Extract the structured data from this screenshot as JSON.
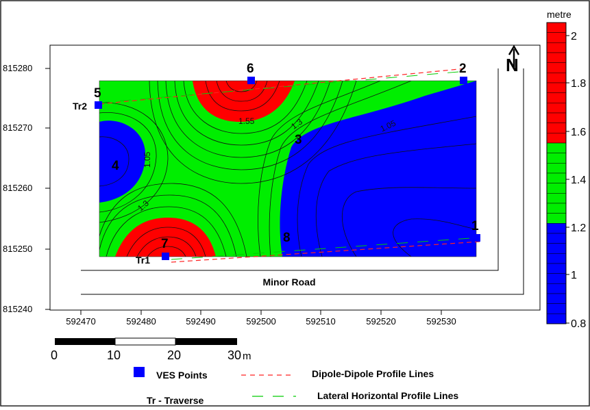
{
  "map": {
    "axis": {
      "x_ticks": [
        "592470",
        "592480",
        "592490",
        "592500",
        "592510",
        "592520",
        "592530"
      ],
      "y_ticks": [
        "815240",
        "815250",
        "815260",
        "815270",
        "815280"
      ]
    },
    "contour_labels": [
      "1.55",
      "1.3",
      "1.05",
      "1.05",
      "1.3"
    ],
    "ves_points": [
      {
        "id": "1",
        "easting": 592535,
        "northing": 815252
      },
      {
        "id": "2",
        "easting": 592533,
        "northing": 815278
      },
      {
        "id": "3",
        "easting": 592505,
        "northing": 815269
      },
      {
        "id": "4",
        "easting": 592476,
        "northing": 815263
      },
      {
        "id": "5",
        "easting": 592473,
        "northing": 815274
      },
      {
        "id": "6",
        "easting": 592498,
        "northing": 815278
      },
      {
        "id": "7",
        "easting": 592484,
        "northing": 815249
      },
      {
        "id": "8",
        "easting": 592502,
        "northing": 815251
      }
    ],
    "traverse_labels": [
      "Tr2",
      "Tr1"
    ],
    "road_label": "Minor Road",
    "north_label": "N"
  },
  "legend_bar": {
    "unit": "metre",
    "labels": [
      "2",
      "1.8",
      "1.6",
      "1.4",
      "1.2",
      "1",
      "0.8"
    ],
    "colors": {
      "high": "#ff0000",
      "mid": "#00ee00",
      "low": "#0000ff"
    }
  },
  "scale_bar": {
    "labels": [
      "0",
      "10",
      "20",
      "30"
    ],
    "unit": "m"
  },
  "key": {
    "ves_label": "VES Points",
    "traverse_label": "Tr - Traverse",
    "dipole_label": "Dipole-Dipole Profile Lines",
    "lateral_label": "Lateral Horizontal Profile Lines",
    "dipole_color": "#ff2020",
    "lateral_color": "#00cc00"
  }
}
